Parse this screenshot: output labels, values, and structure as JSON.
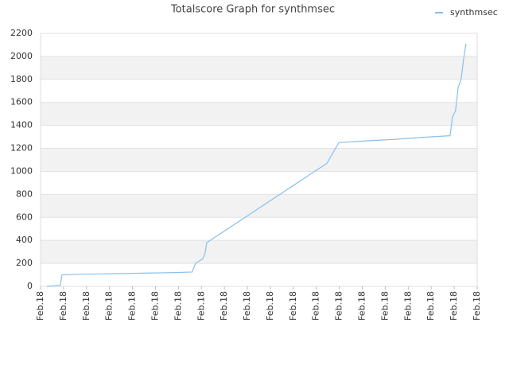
{
  "chart_data": {
    "type": "line",
    "title": "Totalscore Graph for synthmsec",
    "xlim": [
      0,
      19
    ],
    "xticks": [
      {
        "value": 0,
        "label": "Feb.18"
      },
      {
        "value": 1,
        "label": "Feb.18"
      },
      {
        "value": 2,
        "label": "Feb.18"
      },
      {
        "value": 3,
        "label": "Feb.18"
      },
      {
        "value": 4,
        "label": "Feb.18"
      },
      {
        "value": 5,
        "label": "Feb.18"
      },
      {
        "value": 6,
        "label": "Feb.18"
      },
      {
        "value": 7,
        "label": "Feb.18"
      },
      {
        "value": 8,
        "label": "Feb.18"
      },
      {
        "value": 9,
        "label": "Feb.18"
      },
      {
        "value": 10,
        "label": "Feb.18"
      },
      {
        "value": 11,
        "label": "Feb.18"
      },
      {
        "value": 12,
        "label": "Feb.18"
      },
      {
        "value": 13,
        "label": "Feb.18"
      },
      {
        "value": 14,
        "label": "Feb.18"
      },
      {
        "value": 15,
        "label": "Feb.18"
      },
      {
        "value": 16,
        "label": "Feb.18"
      },
      {
        "value": 17,
        "label": "Feb.18"
      },
      {
        "value": 18,
        "label": "Feb.18"
      },
      {
        "value": 19,
        "label": "Feb.18"
      }
    ],
    "ylim": [
      0,
      2200
    ],
    "yticks": [
      0,
      200,
      400,
      600,
      800,
      1000,
      1200,
      1400,
      1600,
      1800,
      2000,
      2200
    ],
    "grid": true,
    "legend": "top-right",
    "series": [
      {
        "name": "synthmsec",
        "color": "#88c0ee",
        "x": [
          0.28,
          0.66,
          0.86,
          0.93,
          1.7,
          3.08,
          4.46,
          5.9,
          6.6,
          6.74,
          7.06,
          7.16,
          7.23,
          12.46,
          12.98,
          14.15,
          15.54,
          16.92,
          17.82,
          17.92,
          18.06,
          18.17,
          18.3,
          18.41,
          18.51
        ],
        "values": [
          0,
          5,
          10,
          100,
          105,
          110,
          115,
          120,
          125,
          200,
          240,
          290,
          380,
          1070,
          1250,
          1265,
          1280,
          1300,
          1310,
          1470,
          1530,
          1730,
          1800,
          1980,
          2110
        ]
      }
    ]
  }
}
